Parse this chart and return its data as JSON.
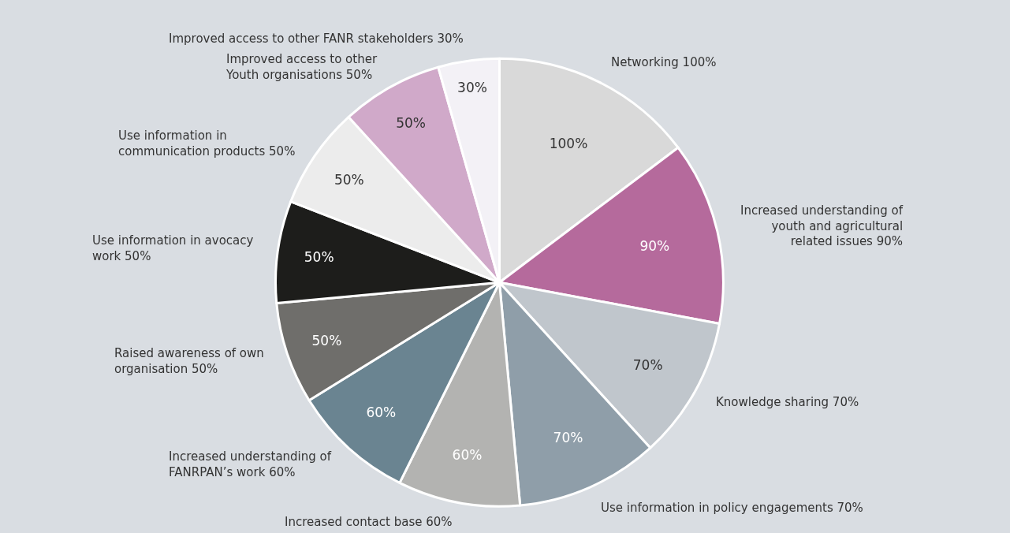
{
  "chart_data": {
    "type": "pie",
    "categories": [
      "Networking 100%",
      "Increased understanding of youth and agricultural related issues 90%",
      "Knowledge sharing 70%",
      "Use information in policy engagements 70%",
      "Increased contact base 60%",
      "Increased understanding of FANRPAN’s work 60%",
      "Raised awareness of own organisation 50%",
      "Use information in avocacy work 50%",
      "Use information in communication products 50%",
      "Improved access to other Youth organisations 50%",
      "Improved access to other FANR stakeholders 30%"
    ],
    "values": [
      100,
      90,
      70,
      70,
      60,
      60,
      50,
      50,
      50,
      50,
      30
    ],
    "value_labels": [
      "100%",
      "90%",
      "70%",
      "70%",
      "60%",
      "60%",
      "50%",
      "50%",
      "50%",
      "50%",
      "30%"
    ],
    "colors": [
      "#d9d9d9",
      "#b56a9c",
      "#c0c6cc",
      "#8f9ea9",
      "#b3b3b1",
      "#6a8491",
      "#6f6e6b",
      "#1d1d1b",
      "#ececec",
      "#d0a9c9",
      "#f3f1f6"
    ],
    "legend": false
  }
}
